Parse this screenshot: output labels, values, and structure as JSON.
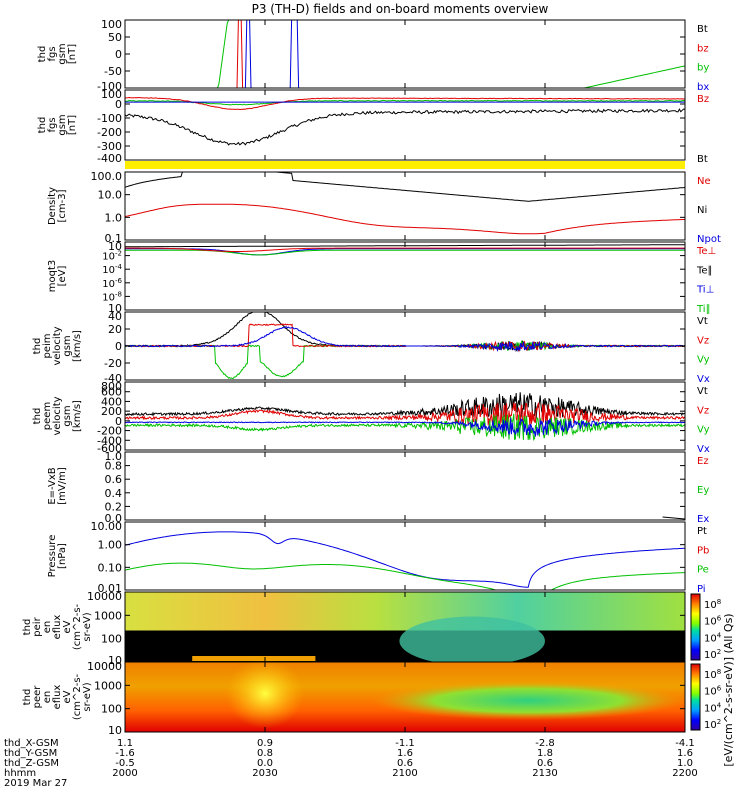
{
  "title": "P3 (TH-D) fields and on-board moments overview",
  "chart_data": {
    "type": "line",
    "title": "P3 (TH-D) fields and on-board moments overview",
    "x_ticks": [
      "2000",
      "2030",
      "2100",
      "2130",
      "2200"
    ],
    "panels": [
      {
        "id": "fgs",
        "ylabel": [
          "thd",
          "fgs",
          "gsm",
          "[nT]"
        ],
        "ylim": [
          -100,
          100
        ],
        "yticks": [
          "100",
          "50",
          "0",
          "-50",
          "-100"
        ],
        "legend": [
          {
            "name": "Bt",
            "color": "#000000"
          },
          {
            "name": "bz",
            "color": "#e00000"
          },
          {
            "name": "by",
            "color": "#00c000"
          },
          {
            "name": "bx",
            "color": "#0000e0"
          }
        ]
      },
      {
        "id": "fgs_large",
        "ylabel": [
          "thd",
          "fgs",
          "gsm",
          "[nT]"
        ],
        "ylim": [
          -450,
          100
        ],
        "yticks": [
          "100",
          "0",
          "-100",
          "-200",
          "-300",
          "-400"
        ],
        "legend": [
          {
            "name": "Bz",
            "color": "#e00000"
          },
          {
            "name": "Bt",
            "color": "#000000"
          }
        ]
      },
      {
        "id": "density",
        "ylabel": [
          "Density",
          "[cm-3]"
        ],
        "yscale": "log",
        "ylim": [
          0.1,
          200
        ],
        "yticks": [
          "100.0",
          "10.0",
          "1.0",
          "0.1"
        ],
        "legend": [
          {
            "name": "Ne",
            "color": "#e00000"
          },
          {
            "name": "Ni",
            "color": "#000000"
          },
          {
            "name": "Npot",
            "color": "#0000e0"
          }
        ]
      },
      {
        "id": "temperature",
        "ylabel": [
          "moqt3",
          "[eV]"
        ],
        "yscale": "log",
        "yticks": [
          "10",
          "10-2",
          "10-4",
          "10-6",
          "10-8",
          "10"
        ],
        "legend": [
          {
            "name": "Te⊥",
            "color": "#e00000"
          },
          {
            "name": "Te∥",
            "color": "#000000"
          },
          {
            "name": "Ti⊥",
            "color": "#0000e0"
          },
          {
            "name": "Ti∥",
            "color": "#00c000"
          }
        ]
      },
      {
        "id": "peim",
        "ylabel": [
          "thd",
          "peim",
          "velocity",
          "gsm",
          "[km/s]"
        ],
        "ylim": [
          -40,
          40
        ],
        "yticks": [
          "40",
          "20",
          "0",
          "-20",
          "-40"
        ],
        "legend": [
          {
            "name": "Vt",
            "color": "#000000"
          },
          {
            "name": "Vz",
            "color": "#e00000"
          },
          {
            "name": "Vy",
            "color": "#00c000"
          },
          {
            "name": "Vx",
            "color": "#0000e0"
          }
        ]
      },
      {
        "id": "peem",
        "ylabel": [
          "thd",
          "peem",
          "velocity",
          "gsm",
          "[km/s]"
        ],
        "ylim": [
          -600,
          800
        ],
        "yticks": [
          "800",
          "600",
          "400",
          "200",
          "0",
          "-200",
          "-400",
          "-600"
        ],
        "legend": [
          {
            "name": "Vt",
            "color": "#000000"
          },
          {
            "name": "Vz",
            "color": "#e00000"
          },
          {
            "name": "Vy",
            "color": "#00c000"
          },
          {
            "name": "Vx",
            "color": "#0000e0"
          }
        ]
      },
      {
        "id": "efield",
        "ylabel": [
          "E=-VxB",
          "[mV/m]"
        ],
        "ylim": [
          0,
          1
        ],
        "yticks": [
          "1.0",
          "0.8",
          "0.6",
          "0.4",
          "0.2",
          "0.0"
        ],
        "legend": [
          {
            "name": "Ez",
            "color": "#e00000"
          },
          {
            "name": "Ey",
            "color": "#00c000"
          },
          {
            "name": "Ex",
            "color": "#0000e0"
          }
        ]
      },
      {
        "id": "pressure",
        "ylabel": [
          "Pressure",
          "[nPa]"
        ],
        "yscale": "log",
        "ylim": [
          0.005,
          20
        ],
        "yticks": [
          "10.00",
          "1.00",
          "0.10",
          "0.01"
        ],
        "legend": [
          {
            "name": "Pt",
            "color": "#000000"
          },
          {
            "name": "Pb",
            "color": "#e00000"
          },
          {
            "name": "Pe",
            "color": "#00c000"
          },
          {
            "name": "Pi",
            "color": "#0000e0"
          }
        ]
      },
      {
        "id": "peir",
        "ylabel": [
          "thd",
          "peir",
          "en",
          "eflux",
          "eV",
          "(cm^2-s-",
          "sr-eV)"
        ],
        "yscale": "log",
        "yticks": [
          "10000",
          "1000",
          "100",
          "10"
        ],
        "cbar_ticks": [
          "10^8",
          "10^6",
          "10^4",
          "10^2"
        ]
      },
      {
        "id": "peer",
        "ylabel": [
          "thd",
          "peer",
          "en",
          "eflux",
          "eV",
          "(cm^2-s-",
          "sr-eV)"
        ],
        "yscale": "log",
        "yticks": [
          "10000",
          "1000",
          "100",
          "10"
        ],
        "cbar_ticks": [
          "10^8",
          "10^6",
          "10^4",
          "10^2"
        ]
      }
    ],
    "colorbar_label": "[eV/(cm^2-s-sr-eV)] (All Qs)",
    "ephemeris": {
      "rows": [
        {
          "label": "thd_X-GSM",
          "values": [
            "1.1",
            "0.9",
            "-1.1",
            "-2.8",
            "-4.1"
          ]
        },
        {
          "label": "thd_Y-GSM",
          "values": [
            "-1.6",
            "0.8",
            "1.6",
            "1.8",
            "1.6"
          ]
        },
        {
          "label": "thd_Z-GSM",
          "values": [
            "-0.5",
            "0.0",
            "0.6",
            "0.6",
            "1.0"
          ]
        },
        {
          "label": "hhmm",
          "values": [
            "2000",
            "2030",
            "2100",
            "2130",
            "2200"
          ]
        }
      ],
      "date": "2019 Mar 27"
    }
  }
}
